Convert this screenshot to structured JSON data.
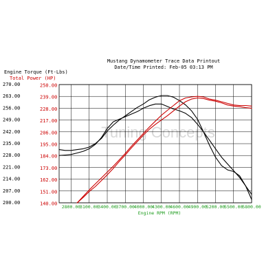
{
  "chart_data": {
    "type": "line",
    "title": "Mustang Dynamometer Trace Data Printout",
    "subtitle": "Date/Time Printed:      Feb-05 03:13 PM",
    "watermark": "Tuning Concepts",
    "ylabel_left": "Engine Torque (Ft-Lbs)",
    "ylabel_right": "Total Power (HP)",
    "xlabel": "Engine RPM (RPM)",
    "xlim": [
      2600,
      5800
    ],
    "ylim_torque": [
      200,
      270
    ],
    "ylim_power": [
      140,
      250
    ],
    "x_ticks": [
      "2800.00",
      "3100.00",
      "3400.00",
      "3700.00",
      "4000.00",
      "4300.00",
      "4600.00",
      "4900.00",
      "5200.00",
      "5500.00",
      "5800.00"
    ],
    "x_tick_values": [
      2800,
      3100,
      3400,
      3700,
      4000,
      4300,
      4600,
      4900,
      5200,
      5500,
      5800
    ],
    "y_ticks_torque": [
      "270.00",
      "263.00",
      "256.00",
      "249.00",
      "242.00",
      "235.00",
      "228.00",
      "221.00",
      "214.00",
      "207.00",
      "200.00"
    ],
    "y_ticks_power": [
      "250.00",
      "239.00",
      "228.00",
      "217.00",
      "206.00",
      "195.00",
      "184.00",
      "173.00",
      "162.00",
      "151.00",
      "140.00"
    ],
    "colors": {
      "torque": "#000000",
      "power": "#cc0000",
      "grid": "#000000",
      "x_axis_text": "#1a9a1a",
      "power_axis_text": "#cc0000"
    },
    "series": [
      {
        "axis": "torque",
        "color": "#000000",
        "x": [
          2600,
          2700,
          2800,
          2900,
          3000,
          3100,
          3200,
          3300,
          3400,
          3500,
          3600,
          3700,
          3800,
          3900,
          4000,
          4100,
          4200,
          4300,
          4400,
          4500,
          4600,
          4700,
          4800,
          4900,
          5000,
          5100,
          5200,
          5300,
          5400,
          5500,
          5600,
          5700,
          5800
        ],
        "y": [
          228.0,
          228.3,
          228.6,
          229.5,
          230.5,
          232.0,
          234.5,
          238.5,
          244.0,
          248.0,
          249.5,
          251.0,
          252.5,
          254.0,
          256.0,
          257.5,
          258.5,
          258.5,
          257.0,
          255.5,
          254.5,
          253.0,
          250.5,
          246.5,
          242.0,
          237.0,
          232.0,
          227.0,
          223.0,
          219.0,
          215.0,
          210.0,
          205.0
        ]
      },
      {
        "axis": "torque",
        "color": "#000000",
        "x": [
          2600,
          2700,
          2800,
          2900,
          3000,
          3100,
          3200,
          3300,
          3400,
          3500,
          3600,
          3700,
          3800,
          3900,
          4000,
          4100,
          4200,
          4300,
          4400,
          4500,
          4600,
          4700,
          4800,
          4900,
          5000,
          5100,
          5200,
          5300,
          5400,
          5500,
          5600,
          5700,
          5800
        ],
        "y": [
          231.5,
          231.0,
          231.0,
          231.5,
          232.0,
          233.0,
          235.0,
          238.0,
          242.5,
          246.0,
          249.0,
          251.5,
          254.0,
          256.5,
          258.5,
          261.0,
          262.5,
          263.5,
          263.5,
          262.5,
          260.5,
          258.0,
          254.5,
          249.5,
          242.0,
          234.0,
          227.0,
          222.0,
          219.5,
          218.5,
          216.0,
          210.0,
          202.0
        ]
      },
      {
        "axis": "power",
        "color": "#cc0000",
        "x": [
          2900,
          3000,
          3100,
          3200,
          3300,
          3400,
          3500,
          3600,
          3700,
          3800,
          3900,
          4000,
          4100,
          4200,
          4300,
          4400,
          4500,
          4600,
          4700,
          4800,
          4900,
          5000,
          5100,
          5200,
          5300,
          5400,
          5500,
          5600,
          5700,
          5800
        ],
        "y": [
          140.0,
          145.0,
          150.5,
          155.0,
          160.5,
          166.0,
          172.0,
          178.5,
          184.5,
          191.0,
          197.0,
          203.0,
          208.5,
          213.0,
          217.0,
          221.0,
          225.5,
          230.0,
          234.0,
          236.5,
          237.5,
          237.0,
          235.5,
          234.5,
          233.0,
          231.0,
          230.0,
          229.5,
          228.5,
          228.0
        ]
      },
      {
        "axis": "power",
        "color": "#cc0000",
        "x": [
          2900,
          3000,
          3100,
          3200,
          3300,
          3400,
          3500,
          3600,
          3700,
          3800,
          3900,
          4000,
          4100,
          4200,
          4300,
          4400,
          4500,
          4600,
          4700,
          4800,
          4900,
          5000,
          5100,
          5200,
          5300,
          5400,
          5500,
          5600,
          5700,
          5800
        ],
        "y": [
          140.0,
          146.0,
          152.0,
          157.5,
          163.0,
          168.5,
          174.0,
          180.0,
          186.0,
          192.5,
          198.5,
          204.5,
          210.5,
          216.0,
          221.5,
          226.0,
          230.5,
          235.0,
          237.5,
          238.5,
          239.0,
          238.5,
          236.5,
          235.5,
          234.0,
          232.5,
          231.0,
          230.5,
          230.5,
          230.0
        ]
      }
    ]
  }
}
